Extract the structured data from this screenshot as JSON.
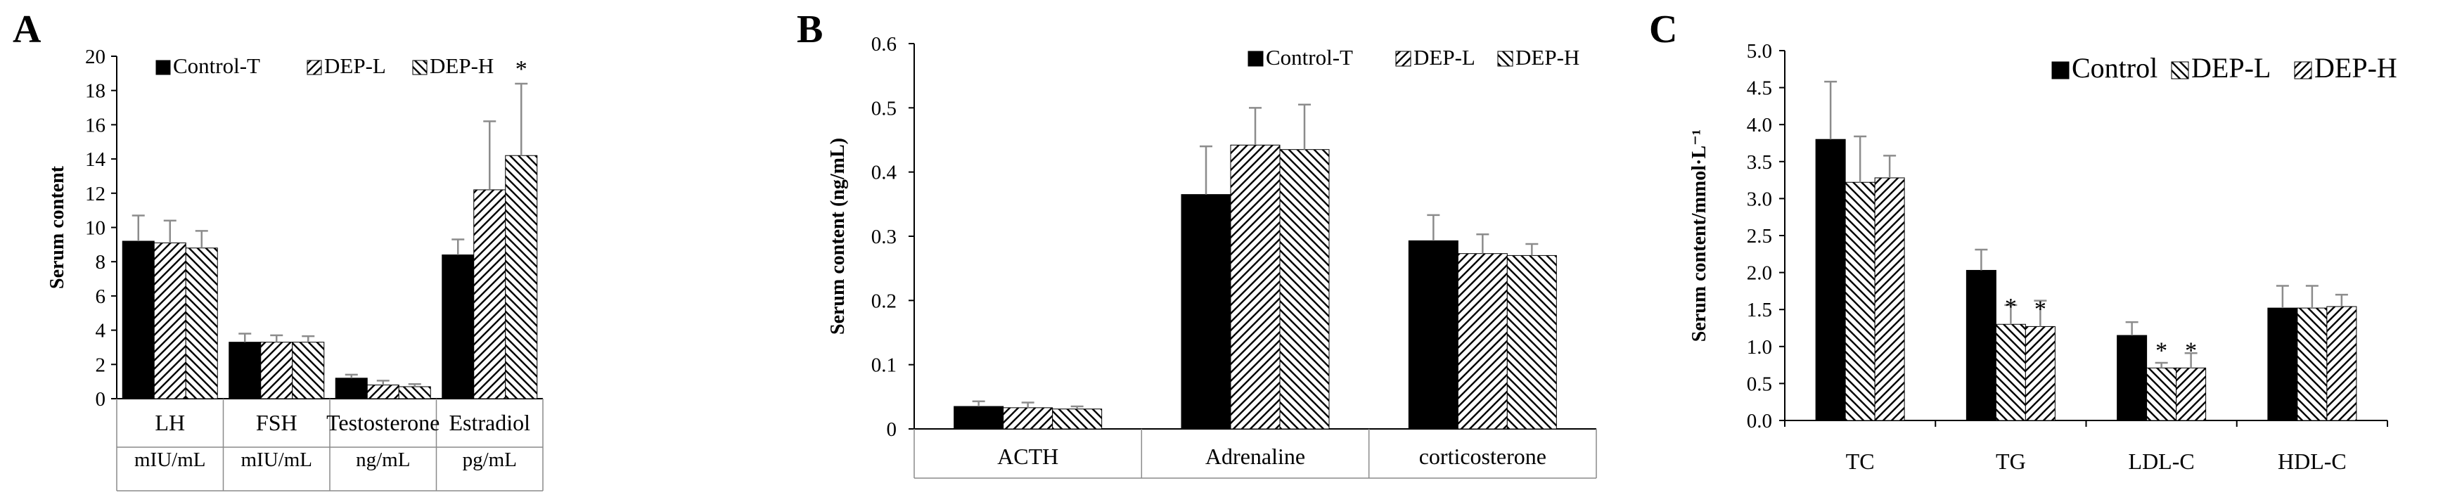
{
  "chart_data": [
    {
      "type": "bar",
      "panel": "A",
      "title": "",
      "ylabel": "Serum content",
      "xlabel": "",
      "ylim": [
        0,
        20
      ],
      "yticks": [
        0,
        2,
        4,
        6,
        8,
        10,
        12,
        14,
        16,
        18,
        20
      ],
      "categories": [
        "LH",
        "FSH",
        "Testosterone",
        "Estradiol"
      ],
      "category_units": [
        "mIU/mL",
        "mIU/mL",
        "ng/mL",
        "pg/mL"
      ],
      "legend_position": "top-left",
      "series": [
        {
          "name": "Control-T",
          "pattern": "solid",
          "values": [
            9.2,
            3.3,
            1.2,
            8.4
          ],
          "errors": [
            1.5,
            0.5,
            0.2,
            0.9
          ]
        },
        {
          "name": "DEP-L",
          "pattern": "diag-right",
          "values": [
            9.1,
            3.3,
            0.8,
            12.2
          ],
          "errors": [
            1.3,
            0.4,
            0.25,
            4.0
          ]
        },
        {
          "name": "DEP-H",
          "pattern": "diag-left",
          "values": [
            8.8,
            3.3,
            0.7,
            14.2
          ],
          "errors": [
            1.0,
            0.35,
            0.15,
            4.2
          ]
        }
      ],
      "annotations": [
        {
          "category": "Estradiol",
          "series": "DEP-H",
          "text": "*"
        }
      ]
    },
    {
      "type": "bar",
      "panel": "B",
      "title": "",
      "ylabel": "Serum content (ng/mL)",
      "xlabel": "",
      "ylim": [
        0,
        0.6
      ],
      "yticks": [
        "0",
        "0.1",
        "0.2",
        "0.3",
        "0.4",
        "0.5",
        "0.6"
      ],
      "categories": [
        "ACTH",
        "Adrenaline",
        "corticosterone"
      ],
      "legend_position": "top-right",
      "series": [
        {
          "name": "Control-T",
          "pattern": "solid",
          "values": [
            0.035,
            0.365,
            0.293
          ],
          "errors": [
            0.008,
            0.075,
            0.04
          ]
        },
        {
          "name": "DEP-L",
          "pattern": "diag-right",
          "values": [
            0.033,
            0.442,
            0.273
          ],
          "errors": [
            0.008,
            0.058,
            0.03
          ]
        },
        {
          "name": "DEP-H",
          "pattern": "diag-left",
          "values": [
            0.031,
            0.435,
            0.27
          ],
          "errors": [
            0.004,
            0.07,
            0.018
          ]
        }
      ],
      "annotations": []
    },
    {
      "type": "bar",
      "panel": "C",
      "title": "",
      "ylabel": "Serum content/mmol·L⁻¹",
      "xlabel": "",
      "ylim": [
        0,
        5
      ],
      "yticks": [
        "0.0",
        "0.5",
        "1.0",
        "1.5",
        "2.0",
        "2.5",
        "3.0",
        "3.5",
        "4.0",
        "4.5",
        "5.0"
      ],
      "categories": [
        "TC",
        "TG",
        "LDL-C",
        "HDL-C"
      ],
      "legend_position": "top-right",
      "series": [
        {
          "name": "Control",
          "pattern": "solid",
          "values": [
            3.8,
            2.03,
            1.15,
            1.52
          ],
          "errors": [
            0.78,
            0.28,
            0.18,
            0.3
          ]
        },
        {
          "name": "DEP-L",
          "pattern": "diag-left",
          "values": [
            3.22,
            1.3,
            0.71,
            1.52
          ],
          "errors": [
            0.62,
            0.26,
            0.07,
            0.3
          ]
        },
        {
          "name": "DEP-H",
          "pattern": "diag-right",
          "values": [
            3.28,
            1.27,
            0.71,
            1.54
          ],
          "errors": [
            0.3,
            0.35,
            0.2,
            0.16
          ]
        }
      ],
      "annotations": [
        {
          "category": "TG",
          "series": "DEP-L",
          "text": "*"
        },
        {
          "category": "TG",
          "series": "DEP-H",
          "text": "*"
        },
        {
          "category": "LDL-C",
          "series": "DEP-L",
          "text": "*"
        },
        {
          "category": "LDL-C",
          "series": "DEP-H",
          "text": "*"
        }
      ]
    }
  ]
}
